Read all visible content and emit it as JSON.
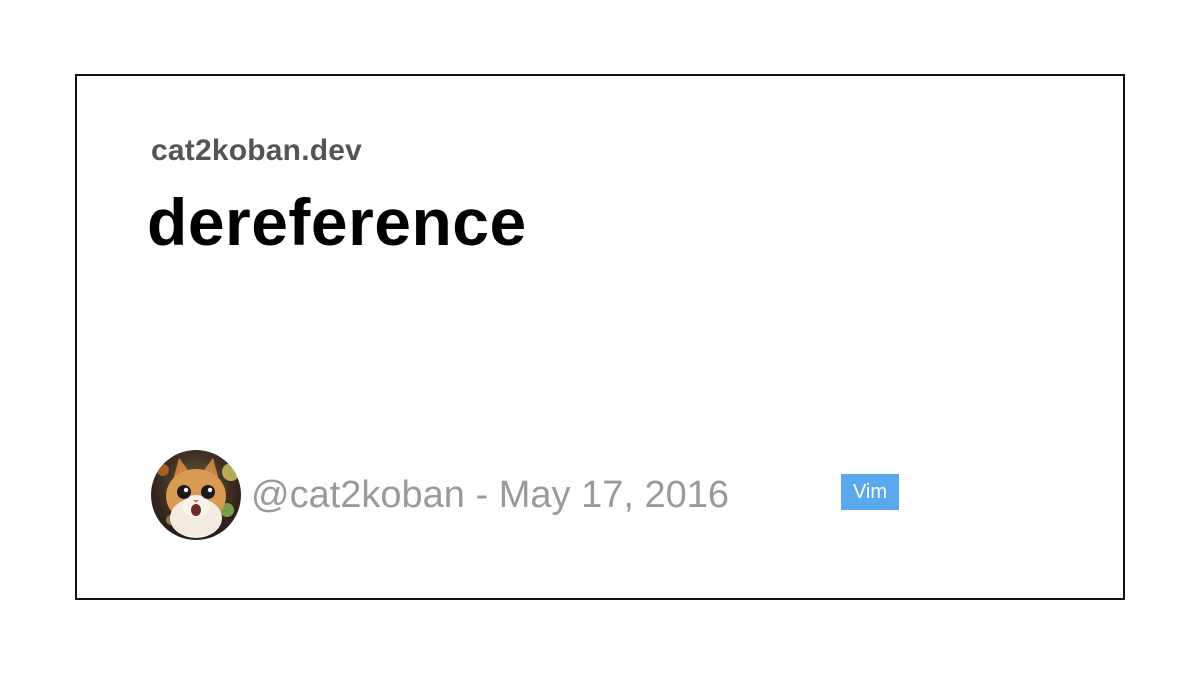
{
  "card": {
    "site": "cat2koban.dev",
    "title": "dereference",
    "author": {
      "handle": "@cat2koban",
      "separator": " - ",
      "date": "May 17, 2016",
      "avatar_icon": "surprised-cat-avatar"
    },
    "tags": [
      {
        "label": "Vim",
        "color": "#5aa8ee"
      }
    ]
  },
  "colors": {
    "border": "#111111",
    "site_text": "#555555",
    "title_text": "#000000",
    "meta_text": "#9a9a9a"
  }
}
